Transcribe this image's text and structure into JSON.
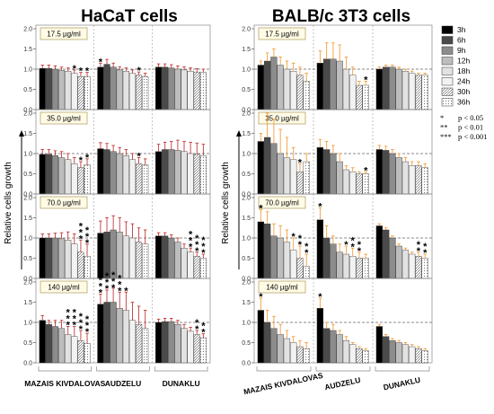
{
  "chart_data": [
    {
      "type": "bar",
      "title": "HaCaT cells",
      "ylabel": "Relative cells growth",
      "ylim": [
        0,
        2.0
      ],
      "yticks": [
        "0.0",
        "0.5",
        "1.0",
        "1.5",
        "2.0"
      ],
      "groups": [
        "MAZAIS KIVDALOVAS",
        "AUDZELU",
        "DUNAKLU"
      ],
      "times": [
        "3h",
        "6h",
        "9h",
        "12h",
        "18h",
        "24h",
        "30h",
        "36h"
      ],
      "reference_line": 1.0,
      "panels": [
        {
          "label": "17.5 µg/ml",
          "values": [
            [
              1.02,
              1.02,
              1.0,
              0.97,
              0.95,
              0.9,
              0.82,
              0.82
            ],
            [
              1.05,
              1.12,
              1.05,
              0.98,
              0.95,
              0.9,
              0.85,
              0.82
            ],
            [
              1.05,
              1.05,
              1.03,
              1.0,
              0.98,
              0.95,
              0.93,
              0.92
            ]
          ],
          "errors": [
            [
              0.08,
              0.08,
              0.08,
              0.08,
              0.08,
              0.08,
              0.1,
              0.1
            ],
            [
              0.1,
              0.12,
              0.1,
              0.08,
              0.08,
              0.08,
              0.08,
              0.08
            ],
            [
              0.08,
              0.08,
              0.08,
              0.08,
              0.08,
              0.08,
              0.08,
              0.08
            ]
          ],
          "stars": [
            [
              "",
              "",
              "",
              "",
              "",
              "*",
              "*",
              "*"
            ],
            [
              "*",
              "",
              "",
              "",
              "",
              "",
              "*",
              ""
            ],
            [
              "",
              "",
              "",
              "",
              "",
              "",
              "",
              ""
            ]
          ]
        },
        {
          "label": "35.0 µg/ml",
          "values": [
            [
              0.98,
              0.98,
              0.95,
              0.9,
              0.85,
              0.75,
              0.65,
              0.72
            ],
            [
              1.12,
              1.1,
              1.05,
              1.0,
              0.95,
              0.85,
              0.75,
              0.72
            ],
            [
              1.05,
              1.1,
              1.1,
              1.08,
              1.05,
              1.0,
              0.98,
              0.95
            ]
          ],
          "errors": [
            [
              0.12,
              0.12,
              0.12,
              0.15,
              0.15,
              0.15,
              0.15,
              0.15
            ],
            [
              0.15,
              0.15,
              0.15,
              0.15,
              0.15,
              0.15,
              0.15,
              0.15
            ],
            [
              0.18,
              0.18,
              0.2,
              0.25,
              0.25,
              0.28,
              0.28,
              0.28
            ]
          ],
          "stars": [
            [
              "",
              "",
              "",
              "",
              "",
              "",
              "*",
              "*"
            ],
            [
              "",
              "",
              "",
              "",
              "",
              "",
              "*",
              ""
            ],
            [
              "",
              "",
              "",
              "",
              "",
              "",
              "",
              ""
            ]
          ]
        },
        {
          "label": "70.0 µg/ml",
          "values": [
            [
              1.0,
              1.0,
              1.0,
              0.98,
              0.95,
              0.85,
              0.65,
              0.55
            ],
            [
              1.12,
              1.15,
              1.2,
              1.15,
              1.05,
              1.0,
              0.9,
              0.85
            ],
            [
              1.05,
              1.05,
              1.0,
              0.9,
              0.75,
              0.65,
              0.55,
              0.5
            ]
          ],
          "errors": [
            [
              0.1,
              0.1,
              0.12,
              0.15,
              0.2,
              0.25,
              0.3,
              0.3
            ],
            [
              0.3,
              0.35,
              0.35,
              0.35,
              0.35,
              0.35,
              0.35,
              0.35
            ],
            [
              0.08,
              0.08,
              0.08,
              0.1,
              0.1,
              0.1,
              0.1,
              0.1
            ]
          ],
          "stars": [
            [
              "",
              "",
              "",
              "",
              "",
              "",
              "***",
              "***"
            ],
            [
              "",
              "",
              "",
              "",
              "",
              "",
              "",
              ""
            ],
            [
              "",
              "",
              "",
              "",
              "",
              "***",
              "***",
              "***"
            ]
          ]
        },
        {
          "label": "140 µg/ml",
          "values": [
            [
              1.05,
              0.95,
              0.9,
              0.85,
              0.7,
              0.65,
              0.55,
              0.48
            ],
            [
              1.45,
              1.5,
              1.5,
              1.35,
              1.3,
              1.05,
              0.95,
              0.85
            ],
            [
              1.0,
              1.02,
              1.02,
              0.95,
              0.85,
              0.78,
              0.7,
              0.62
            ]
          ],
          "errors": [
            [
              0.12,
              0.1,
              0.15,
              0.2,
              0.2,
              0.25,
              0.25,
              0.25
            ],
            [
              0.25,
              0.3,
              0.35,
              0.4,
              0.45,
              0.45,
              0.45,
              0.45
            ],
            [
              0.08,
              0.08,
              0.08,
              0.1,
              0.1,
              0.1,
              0.1,
              0.1
            ]
          ],
          "stars": [
            [
              "",
              "",
              "",
              "",
              "***",
              "***",
              "***",
              "***"
            ],
            [
              "***",
              "***",
              "***",
              "***",
              "*",
              "",
              "",
              ""
            ],
            [
              "",
              "",
              "",
              "",
              "",
              "",
              "**",
              "**"
            ]
          ]
        }
      ]
    },
    {
      "type": "bar",
      "title": "BALB/c 3T3 cells",
      "ylabel": "Relative cells growth",
      "ylim": [
        0,
        2.0
      ],
      "yticks": [
        "0.0",
        "0.5",
        "1.0",
        "1.5",
        "2.0"
      ],
      "groups": [
        "MAZAIS KIVDALOVAS",
        "AUDZELU",
        "DUNAKLU"
      ],
      "times": [
        "3h",
        "6h",
        "9h",
        "12h",
        "18h",
        "24h",
        "30h",
        "36h"
      ],
      "reference_line": 1.0,
      "panels": [
        {
          "label": "17.5 µg/ml",
          "values": [
            [
              1.1,
              1.2,
              1.3,
              1.1,
              1.0,
              0.95,
              0.85,
              0.7
            ],
            [
              1.15,
              1.25,
              1.25,
              1.2,
              1.0,
              0.85,
              0.6,
              0.6
            ],
            [
              1.0,
              1.05,
              1.05,
              1.0,
              0.95,
              0.9,
              0.85,
              0.85
            ]
          ],
          "errors": [
            [
              0.1,
              0.2,
              0.2,
              0.2,
              0.2,
              0.2,
              0.2,
              0.2
            ],
            [
              0.3,
              0.4,
              0.4,
              0.4,
              0.3,
              0.2,
              0.1,
              0.1
            ],
            [
              0.05,
              0.05,
              0.05,
              0.05,
              0.05,
              0.05,
              0.05,
              0.05
            ]
          ],
          "stars": [
            [
              "",
              "",
              "",
              "",
              "",
              "",
              "",
              ""
            ],
            [
              "",
              "",
              "",
              "",
              "",
              "",
              "",
              "*"
            ],
            [
              "",
              "",
              "",
              "",
              "",
              "",
              "",
              ""
            ]
          ]
        },
        {
          "label": "35.0 µg/ml",
          "values": [
            [
              1.3,
              1.4,
              1.25,
              1.0,
              0.9,
              0.85,
              0.55,
              0.8
            ],
            [
              1.15,
              1.1,
              1.0,
              0.8,
              0.6,
              0.55,
              0.5,
              0.5
            ],
            [
              1.1,
              1.08,
              1.0,
              0.9,
              0.8,
              0.7,
              0.7,
              0.65
            ]
          ],
          "errors": [
            [
              0.2,
              0.6,
              0.6,
              0.6,
              0.5,
              0.3,
              0.2,
              0.2
            ],
            [
              0.2,
              0.2,
              0.2,
              0.2,
              0.1,
              0.1,
              0.05,
              0.05
            ],
            [
              0.1,
              0.1,
              0.1,
              0.1,
              0.1,
              0.1,
              0.1,
              0.1
            ]
          ],
          "stars": [
            [
              "",
              "",
              "",
              "",
              "",
              "",
              "*",
              ""
            ],
            [
              "",
              "",
              "",
              "",
              "",
              "",
              "",
              "*"
            ],
            [
              "",
              "",
              "",
              "",
              "",
              "",
              "",
              ""
            ]
          ]
        },
        {
          "label": "70.0 µg/ml",
          "values": [
            [
              1.4,
              1.35,
              1.05,
              1.0,
              0.9,
              0.7,
              0.5,
              0.3
            ],
            [
              1.45,
              1.0,
              0.85,
              0.65,
              0.6,
              0.55,
              0.5,
              0.5
            ],
            [
              1.3,
              1.2,
              1.0,
              0.8,
              0.7,
              0.6,
              0.55,
              0.5
            ]
          ],
          "errors": [
            [
              0.3,
              0.3,
              0.3,
              0.3,
              0.3,
              0.3,
              0.3,
              0.3
            ],
            [
              0.3,
              0.3,
              0.2,
              0.2,
              0.2,
              0.2,
              0.15,
              0.1
            ],
            [
              0.05,
              0.05,
              0.05,
              0.05,
              0.05,
              0.05,
              0.1,
              0.1
            ]
          ],
          "stars": [
            [
              "*",
              "",
              "",
              "",
              "",
              "*",
              "**",
              "**"
            ],
            [
              "*",
              "",
              "",
              "",
              "*",
              "**",
              "**",
              ""
            ],
            [
              "",
              "",
              "",
              "",
              "",
              "",
              "**",
              "**"
            ]
          ]
        },
        {
          "label": "140 µg/ml",
          "values": [
            [
              1.3,
              1.0,
              0.85,
              0.7,
              0.6,
              0.5,
              0.4,
              0.35
            ],
            [
              1.35,
              0.85,
              0.8,
              0.7,
              0.55,
              0.45,
              0.35,
              0.3
            ],
            [
              0.9,
              0.65,
              0.55,
              0.5,
              0.45,
              0.4,
              0.35,
              0.3
            ]
          ],
          "errors": [
            [
              0.3,
              0.3,
              0.3,
              0.25,
              0.2,
              0.15,
              0.15,
              0.15
            ],
            [
              0.25,
              0.15,
              0.15,
              0.1,
              0.1,
              0.05,
              0.05,
              0.05
            ],
            [
              0.05,
              0.05,
              0.05,
              0.05,
              0.05,
              0.05,
              0.05,
              0.05
            ]
          ],
          "stars": [
            [
              "*",
              "",
              "",
              "",
              "",
              "",
              "",
              ""
            ],
            [
              "*",
              "",
              "",
              "",
              "",
              "",
              "",
              ""
            ],
            [
              "",
              "",
              "",
              "",
              "",
              "",
              "",
              ""
            ]
          ]
        }
      ]
    }
  ],
  "legend": {
    "items": [
      {
        "label": "3h",
        "color": "#000000"
      },
      {
        "label": "6h",
        "color": "#4a4a4a"
      },
      {
        "label": "9h",
        "color": "#8c8c8c"
      },
      {
        "label": "12h",
        "color": "#bdbdbd"
      },
      {
        "label": "18h",
        "color": "#e2e2e2"
      },
      {
        "label": "24h",
        "color": "#f2f2f2"
      },
      {
        "label": "30h",
        "color": "#e8e8e8"
      },
      {
        "label": "36h",
        "color": "#f7f7f7"
      }
    ],
    "significance": [
      {
        "mark": "*",
        "text": "p < 0.05"
      },
      {
        "mark": "**",
        "text": "p < 0.01"
      },
      {
        "mark": "***",
        "text": "p < 0.001"
      }
    ]
  },
  "colors": {
    "hacat_error": "#c03a3a",
    "balb_error": "#f29e3d",
    "reference_line": "#666666",
    "bar_stroke": "#333333"
  }
}
